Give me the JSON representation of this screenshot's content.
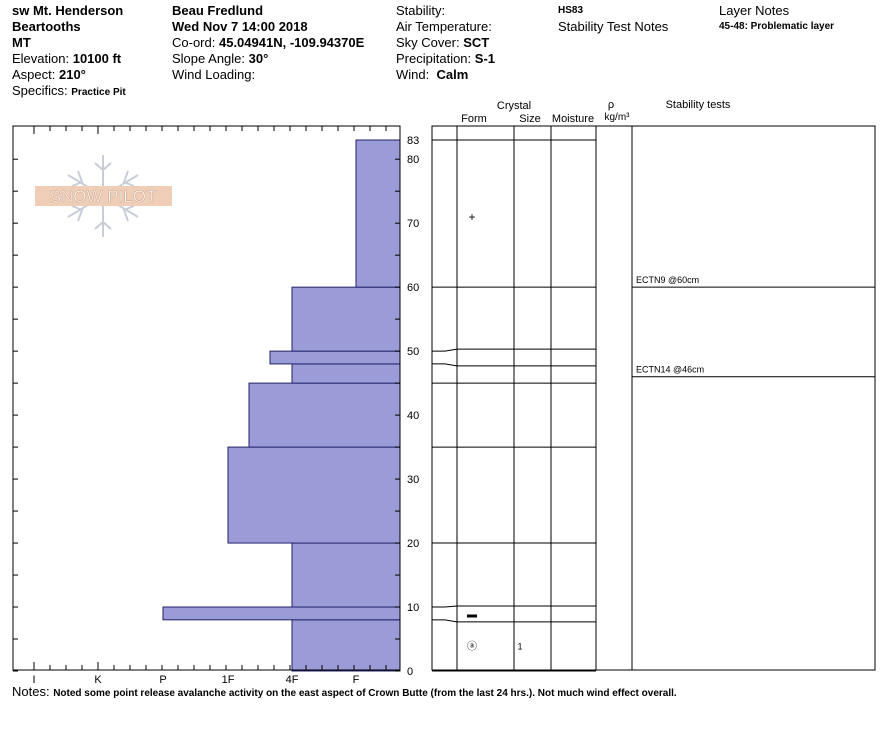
{
  "header": {
    "location": "sw Mt. Henderson",
    "range": "Beartooths",
    "state": "MT",
    "elevation_label": "Elevation:",
    "elevation_value": "10100 ft",
    "aspect_label": "Aspect:",
    "aspect_value": "210°",
    "specifics_label": "Specifics:",
    "specifics_value": "Practice Pit",
    "observer": "Beau  Fredlund",
    "datetime": "Wed Nov 7 14:00 2018",
    "coord_label": "Co-ord:",
    "coord_value": "45.04941N, -109.94370E",
    "slope_label": "Slope Angle:",
    "slope_value": "30°",
    "wind_loading_label": "Wind Loading:",
    "stability_label": "Stability:",
    "air_temp_label": "Air Temperature:",
    "sky_label": "Sky Cover:",
    "sky_value": "SCT",
    "precip_label": "Precipitation:",
    "precip_value": "S-1",
    "wind_label": "Wind:",
    "wind_value": "Calm",
    "hs": "HS83",
    "stability_notes_label": "Stability Test Notes",
    "layer_notes_label": "Layer Notes",
    "layer_note": "45-48: Problematic layer"
  },
  "logo": {
    "text": "SNOW PILOT"
  },
  "columns": {
    "crystal": "Crystal",
    "form": "Form",
    "size": "Size",
    "moisture": "Moisture",
    "rho": "ρ",
    "density_unit": "kg/m³",
    "stability_tests": "Stability tests"
  },
  "colors": {
    "hardness_fill": "#9b9bd8",
    "hardness_stroke": "#22226a"
  },
  "chart_data": {
    "type": "bar",
    "orientation": "horizontal",
    "description_axis": "hand hardness profile vs height (cm)",
    "hardness_ticks": [
      "I",
      "K",
      "P",
      "1F",
      "4F",
      "F"
    ],
    "height_ticks": [
      0,
      10,
      20,
      30,
      40,
      50,
      60,
      70,
      80,
      83
    ],
    "ylim": [
      0,
      83
    ],
    "layers": [
      {
        "bottom": 0,
        "top": 8,
        "hardness": "4F"
      },
      {
        "bottom": 8,
        "top": 10,
        "hardness": "P"
      },
      {
        "bottom": 10,
        "top": 20,
        "hardness": "4F"
      },
      {
        "bottom": 20,
        "top": 35,
        "hardness": "1F"
      },
      {
        "bottom": 35,
        "top": 45,
        "hardness": "1F+"
      },
      {
        "bottom": 45,
        "top": 48,
        "hardness": "4F"
      },
      {
        "bottom": 48,
        "top": 50,
        "hardness": "4F-"
      },
      {
        "bottom": 50,
        "top": 60,
        "hardness": "4F"
      },
      {
        "bottom": 60,
        "top": 83,
        "hardness": "F"
      }
    ],
    "layer_boundaries": [
      83,
      60,
      50,
      48,
      45,
      35,
      20,
      10,
      8,
      0
    ],
    "grain_symbols": [
      {
        "height": 71,
        "symbol": "+"
      },
      {
        "height": 9,
        "symbol": "▬"
      },
      {
        "height": 4,
        "symbol": "ⓐ",
        "size": "1"
      }
    ],
    "stability_tests": [
      {
        "label": "ECTN9 @60cm",
        "height": 60
      },
      {
        "label": "ECTN14 @46cm",
        "height": 46
      }
    ]
  },
  "notes": {
    "label": "Notes:",
    "text": "Noted some point release avalanche activity on the east aspect of Crown Butte (from the last 24 hrs.).  Not much wind effect overall."
  }
}
